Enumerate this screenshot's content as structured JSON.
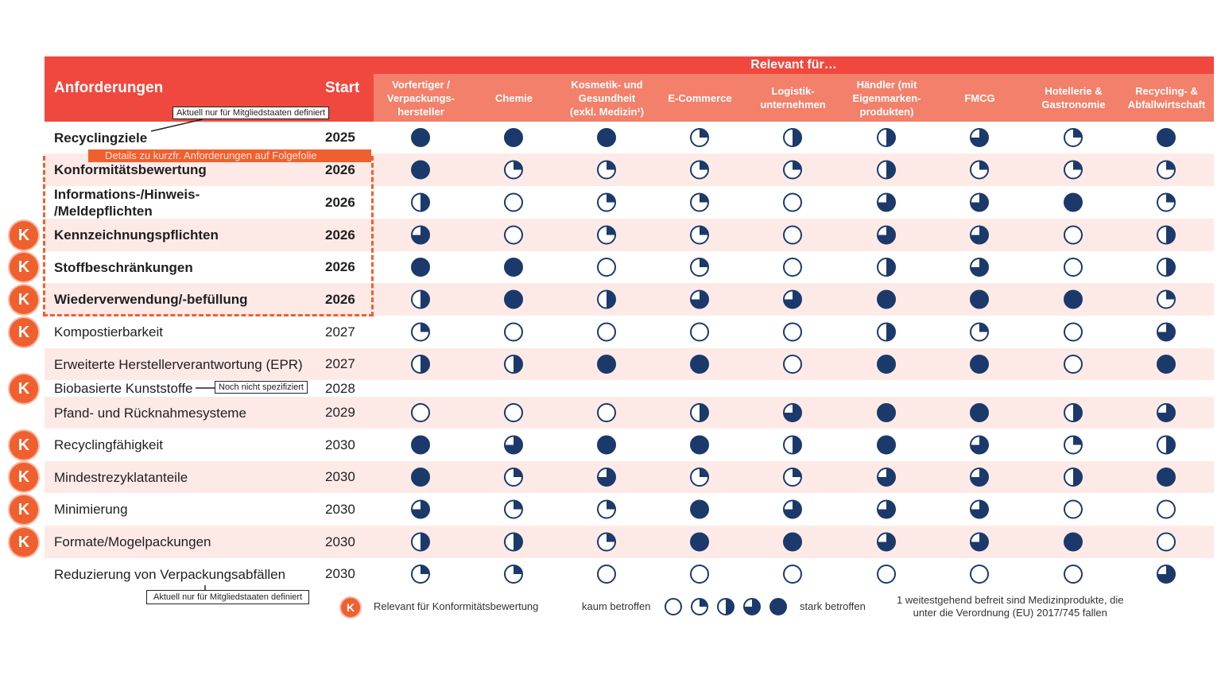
{
  "header": {
    "anforderungen": "Anforderungen",
    "start": "Start",
    "relevant_fuer": "Relevant für…",
    "columns": [
      "Vorfertiger /\nVerpackungs-\nhersteller",
      "Chemie",
      "Kosmetik- und\nGesundheit\n(exkl. Medizin¹)",
      "E-Commerce",
      "Logistik-\nunternehmen",
      "Händler (mit\nEigenmarken-\nprodukten)",
      "FMCG",
      "Hotellerie &\nGastronomie",
      "Recycling- &\nAbfallwirtschaft"
    ]
  },
  "rows": [
    {
      "label": "Recyclingziele",
      "start": "2025",
      "bold": true,
      "k": false,
      "levels": [
        4,
        4,
        4,
        1,
        2,
        2,
        3,
        1,
        4
      ]
    },
    {
      "label": "Konformitätsbewertung",
      "start": "2026",
      "bold": true,
      "k": false,
      "levels": [
        4,
        1,
        1,
        1,
        1,
        2,
        1,
        1,
        1
      ]
    },
    {
      "label": "Informations-/Hinweis-\n/Meldepflichten",
      "start": "2026",
      "bold": true,
      "k": false,
      "levels": [
        2,
        0,
        1,
        1,
        0,
        3,
        3,
        4,
        1
      ]
    },
    {
      "label": "Kennzeichnungspflichten",
      "start": "2026",
      "bold": true,
      "k": true,
      "levels": [
        3,
        0,
        1,
        1,
        0,
        3,
        3,
        0,
        2
      ]
    },
    {
      "label": "Stoffbeschränkungen",
      "start": "2026",
      "bold": true,
      "k": true,
      "levels": [
        4,
        4,
        0,
        1,
        0,
        2,
        3,
        0,
        2
      ]
    },
    {
      "label": "Wiederverwendung/-befüllung",
      "start": "2026",
      "bold": true,
      "k": true,
      "levels": [
        2,
        4,
        2,
        3,
        3,
        4,
        4,
        4,
        1
      ]
    },
    {
      "label": "Kompostierbarkeit",
      "start": "2027",
      "bold": false,
      "k": true,
      "levels": [
        1,
        0,
        0,
        0,
        0,
        2,
        1,
        0,
        3
      ]
    },
    {
      "label": "Erweiterte Herstellerverantwortung (EPR)",
      "start": "2027",
      "bold": false,
      "k": false,
      "levels": [
        2,
        2,
        4,
        4,
        0,
        4,
        4,
        0,
        4
      ]
    },
    {
      "label": "Biobasierte Kunststoffe",
      "start": "2028",
      "bold": false,
      "k": true,
      "levels": []
    },
    {
      "label": "Pfand- und Rücknahmesysteme",
      "start": "2029",
      "bold": false,
      "k": false,
      "levels": [
        0,
        0,
        0,
        2,
        3,
        4,
        4,
        2,
        3
      ]
    },
    {
      "label": "Recyclingfähigkeit",
      "start": "2030",
      "bold": false,
      "k": true,
      "levels": [
        4,
        3,
        4,
        4,
        2,
        4,
        3,
        1,
        2
      ]
    },
    {
      "label": "Mindestrezyklatanteile",
      "start": "2030",
      "bold": false,
      "k": true,
      "levels": [
        4,
        1,
        3,
        1,
        1,
        3,
        3,
        2,
        4
      ]
    },
    {
      "label": "Minimierung",
      "start": "2030",
      "bold": false,
      "k": true,
      "levels": [
        3,
        1,
        1,
        4,
        3,
        3,
        3,
        0,
        0
      ]
    },
    {
      "label": "Formate/Mogelpackungen",
      "start": "2030",
      "bold": false,
      "k": true,
      "levels": [
        2,
        2,
        1,
        4,
        4,
        3,
        3,
        4,
        0
      ]
    },
    {
      "label": "Reduzierung von Verpackungsabfällen",
      "start": "2030",
      "bold": false,
      "k": false,
      "levels": [
        1,
        1,
        0,
        0,
        0,
        0,
        0,
        0,
        3
      ]
    }
  ],
  "k_letter": "K",
  "callouts": {
    "top": "Aktuell nur für Mitgliedstaaten definiert",
    "details": "Details zu kurzfr. Anforderungen auf Folgefolie",
    "bio": "Noch nicht spezifiziert",
    "bottom": "Aktuell nur für Mitgliedstaaten definiert"
  },
  "legend": {
    "k_text": "Relevant für Konformitätsbewertung",
    "low": "kaum betroffen",
    "high": "stark betroffen",
    "footnote": "1 weitestgehend befreit sind Medizinprodukte, die\nunter die Verordnung (EU) 2017/745 fallen"
  },
  "colors": {
    "red": "#f0483e",
    "salmon": "#f3806a",
    "orange": "#f0602f",
    "navy": "#1b3a6b",
    "stripe": "#fdeae7"
  }
}
